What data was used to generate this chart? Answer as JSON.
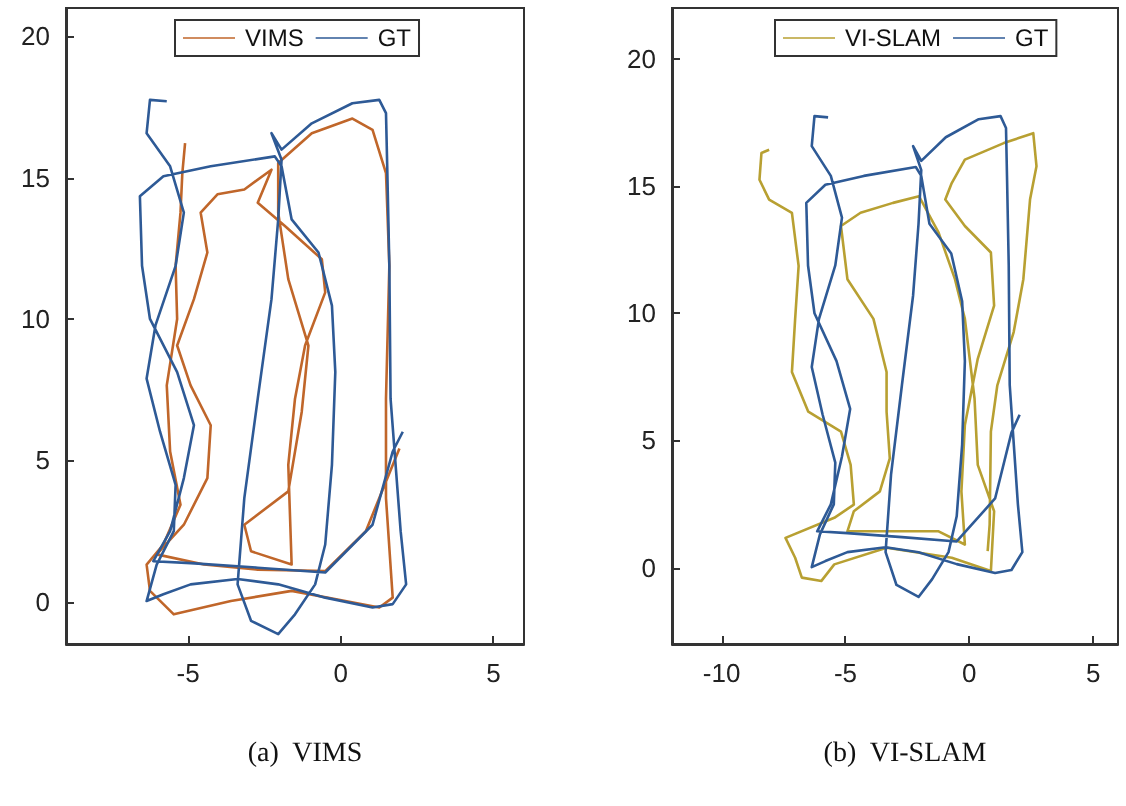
{
  "chart_data": [
    {
      "type": "line",
      "title": "(a)  VIMS",
      "xlim": [
        -9,
        6
      ],
      "ylim": [
        -1.5,
        21
      ],
      "xticks": [
        -5,
        0,
        5
      ],
      "yticks": [
        0,
        5,
        10,
        15,
        20
      ],
      "grid": false,
      "legend": "top",
      "series": [
        {
          "name": "VIMS",
          "color": "#c0662a",
          "x": [
            1.92,
            0.82,
            -0.51,
            -2.72,
            -4.48,
            -6.03,
            -5.14,
            -4.37,
            -4.26,
            -4.92,
            -5.36,
            -4.81,
            -4.37,
            -4.59,
            -4.04,
            -3.16,
            -2.27,
            -2.72,
            -1.83,
            -0.62,
            -0.51,
            -1.17,
            -1.5,
            -1.72,
            -1.61,
            -2.94,
            -3.16,
            -1.72,
            -1.28,
            -1.06,
            -1.72,
            -2.05,
            -2.05,
            -0.95,
            0.38,
            1.04,
            1.48,
            1.59,
            1.48,
            1.48,
            1.7,
            1.26,
            0.15,
            -1.61,
            -3.6,
            -5.47,
            -6.25,
            -6.36,
            -5.81,
            -5.25,
            -5.59,
            -5.7,
            -5.36,
            -5.41,
            -5.25,
            -5.19,
            -5.1
          ],
          "values": [
            5.42,
            2.49,
            1.08,
            1.13,
            1.31,
            1.67,
            2.72,
            4.37,
            6.24,
            7.65,
            9.06,
            10.7,
            12.35,
            13.76,
            14.41,
            14.58,
            15.28,
            14.11,
            13.29,
            12.11,
            10.94,
            9.06,
            7.18,
            4.84,
            1.31,
            1.78,
            2.72,
            3.9,
            6.71,
            9.06,
            11.41,
            13.76,
            15.52,
            16.57,
            17.09,
            16.69,
            15.16,
            11.88,
            7.18,
            3.66,
            0.14,
            -0.21,
            0.02,
            0.38,
            0.02,
            -0.45,
            0.38,
            1.31,
            2.02,
            3.43,
            5.31,
            7.65,
            10,
            11.88,
            13.76,
            15.16,
            16.22
          ]
        },
        {
          "name": "GT",
          "color": "#2e5a96",
          "x": [
            -5.7,
            -6.25,
            -6.36,
            -5.59,
            -5.14,
            -5.41,
            -6.07,
            -6.36,
            -5.92,
            -5.41,
            -5.47,
            -6.03,
            -6.36,
            -5.81,
            -4.92,
            -3.38,
            -2.05,
            -0.51,
            1.04,
            1.7,
            2.14,
            1.96,
            1.63,
            1.59,
            1.52,
            1.48,
            1.26,
            0.38,
            -0.95,
            -1.94,
            -2.27,
            -1.94,
            -2.05,
            -2.27,
            -2.72,
            -3.16,
            -3.38,
            -2.94,
            -2.05,
            -1.5,
            -0.84,
            -0.51,
            -0.29,
            -0.18,
            -0.29,
            -0.73,
            -1.61,
            -1.94,
            -2.16,
            -4.26,
            -5.81,
            -6.58,
            -6.51,
            -6.25,
            -5.36,
            -4.81,
            -5.14,
            -5.59,
            -6.14,
            -4.92,
            -2.72,
            -0.51,
            1.04,
            1.7,
            2.03
          ],
          "values": [
            17.7,
            17.75,
            16.57,
            15.4,
            13.76,
            11.88,
            9.77,
            7.89,
            6.01,
            4.13,
            2.49,
            1.31,
            0.02,
            0.26,
            0.61,
            0.8,
            0.61,
            0.14,
            -0.21,
            -0.09,
            0.61,
            2.49,
            7.18,
            11.88,
            15.4,
            17.28,
            17.75,
            17.63,
            16.92,
            15.99,
            16.57,
            15.63,
            13.52,
            10.7,
            7.18,
            3.66,
            0.61,
            -0.68,
            -1.15,
            -0.45,
            0.61,
            2.02,
            4.84,
            8.12,
            10.47,
            12.35,
            13.52,
            15.4,
            15.75,
            15.4,
            15.05,
            14.34,
            11.88,
            10,
            8.12,
            6.24,
            4.37,
            2.49,
            1.43,
            1.36,
            1.2,
            1.03,
            2.72,
            5.31,
            6.01
          ]
        }
      ]
    },
    {
      "type": "line",
      "title": "(b)  VI-SLAM",
      "xlim": [
        -12,
        6
      ],
      "ylim": [
        -3,
        22
      ],
      "xticks": [
        -10,
        -5,
        0,
        5
      ],
      "yticks": [
        0,
        5,
        10,
        15,
        20
      ],
      "grid": false,
      "legend": "top",
      "series": [
        {
          "name": "VI-SLAM",
          "color": "#b8a032",
          "x": [
            -8.08,
            -8.39,
            -8.47,
            -8.08,
            -7.16,
            -6.89,
            -7.03,
            -7.16,
            -6.5,
            -5.18,
            -4.79,
            -4.66,
            -5.45,
            -7.42,
            -7.03,
            -6.76,
            -5.97,
            -5.45,
            -3.34,
            -0.71,
            0.87,
            1,
            0.34,
            0.21,
            -0.18,
            -0.58,
            -1.24,
            -2.03,
            -3.08,
            -4.39,
            -5.18,
            -4.92,
            -3.87,
            -3.34,
            -3.34,
            -3.21,
            -3.61,
            -4.66,
            -4.92,
            -3.87,
            -1.24,
            -0.18,
            -0.32,
            -0.18,
            0.34,
            1,
            0.87,
            -0.18,
            -0.97,
            -0.71,
            -0.18,
            1.39,
            2.58,
            2.71,
            2.45,
            2.18,
            1.79,
            1.13,
            0.87,
            0.82,
            0.74
          ],
          "values": [
            16.43,
            16.3,
            15.25,
            14.47,
            13.95,
            11.86,
            9.78,
            7.69,
            6.13,
            5.35,
            4.04,
            2.48,
            1.96,
            1.17,
            0.39,
            -0.39,
            -0.52,
            0.13,
            0.78,
            0.39,
            -0.13,
            2.22,
            4.04,
            6.65,
            9.78,
            11.34,
            13.17,
            14.6,
            14.34,
            13.95,
            13.43,
            11.34,
            9.78,
            7.69,
            6.13,
            4.3,
            3,
            2.22,
            1.43,
            1.43,
            1.43,
            0.91,
            3,
            5.61,
            8.21,
            10.3,
            12.39,
            13.43,
            14.47,
            15.12,
            16.04,
            16.69,
            17.08,
            15.78,
            14.47,
            11.34,
            9.26,
            7.17,
            5.35,
            1.69,
            0.65
          ]
        },
        {
          "name": "GT",
          "color": "#2e5a96",
          "x": [
            -5.7,
            -6.25,
            -6.36,
            -5.59,
            -5.14,
            -5.41,
            -6.07,
            -6.36,
            -5.92,
            -5.41,
            -5.47,
            -6.03,
            -6.36,
            -5.81,
            -4.92,
            -3.38,
            -2.05,
            -0.51,
            1.04,
            1.7,
            2.14,
            1.96,
            1.63,
            1.59,
            1.52,
            1.48,
            1.26,
            0.38,
            -0.95,
            -1.94,
            -2.27,
            -1.94,
            -2.05,
            -2.27,
            -2.72,
            -3.16,
            -3.38,
            -2.94,
            -2.05,
            -1.5,
            -0.84,
            -0.51,
            -0.29,
            -0.18,
            -0.29,
            -0.73,
            -1.61,
            -1.94,
            -2.16,
            -4.26,
            -5.81,
            -6.58,
            -6.51,
            -6.25,
            -5.36,
            -4.81,
            -5.14,
            -5.59,
            -6.14,
            -4.92,
            -2.72,
            -0.51,
            1.04,
            1.7,
            2.03
          ],
          "values": [
            17.7,
            17.75,
            16.57,
            15.4,
            13.76,
            11.88,
            9.77,
            7.89,
            6.01,
            4.13,
            2.49,
            1.31,
            0.02,
            0.26,
            0.61,
            0.8,
            0.61,
            0.14,
            -0.21,
            -0.09,
            0.61,
            2.49,
            7.18,
            11.88,
            15.4,
            17.28,
            17.75,
            17.63,
            16.92,
            15.99,
            16.57,
            15.63,
            13.52,
            10.7,
            7.18,
            3.66,
            0.61,
            -0.68,
            -1.15,
            -0.45,
            0.61,
            2.02,
            4.84,
            8.12,
            10.47,
            12.35,
            13.52,
            15.4,
            15.75,
            15.4,
            15.05,
            14.34,
            11.88,
            10,
            8.12,
            6.24,
            4.37,
            2.49,
            1.43,
            1.36,
            1.2,
            1.03,
            2.72,
            5.31,
            6.01
          ]
        }
      ]
    }
  ]
}
